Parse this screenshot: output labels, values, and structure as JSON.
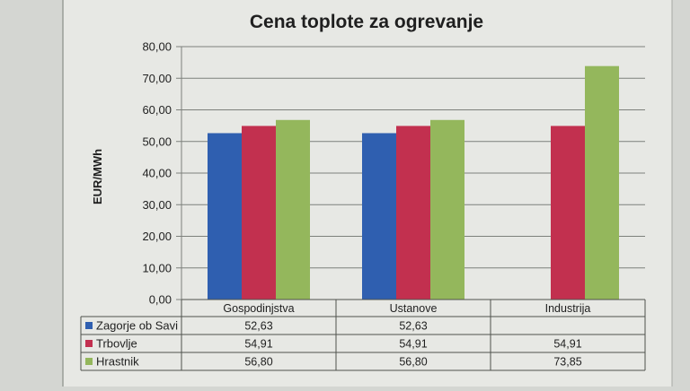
{
  "chart_data": {
    "type": "bar",
    "title": "Cena toplote za ogrevanje",
    "ylabel": "EUR/MWh",
    "xlabel": "",
    "ylim": [
      0,
      80
    ],
    "yticks": [
      "0,00",
      "10,00",
      "20,00",
      "30,00",
      "40,00",
      "50,00",
      "60,00",
      "70,00",
      "80,00"
    ],
    "grid": true,
    "legend": "data-table-below",
    "categories": [
      "Gospodinjstva",
      "Ustanove",
      "Industrija"
    ],
    "series": [
      {
        "name": "Zagorje ob Savi",
        "color": "#2f5fb0",
        "values": [
          52.63,
          52.63,
          null
        ],
        "labels": [
          "52,63",
          "52,63",
          ""
        ]
      },
      {
        "name": "Trbovlje",
        "color": "#c2304f",
        "values": [
          54.91,
          54.91,
          54.91
        ],
        "labels": [
          "54,91",
          "54,91",
          "54,91"
        ]
      },
      {
        "name": "Hrastnik",
        "color": "#94b75c",
        "values": [
          56.8,
          56.8,
          73.85
        ],
        "labels": [
          "56,80",
          "56,80",
          "73,85"
        ]
      }
    ]
  }
}
